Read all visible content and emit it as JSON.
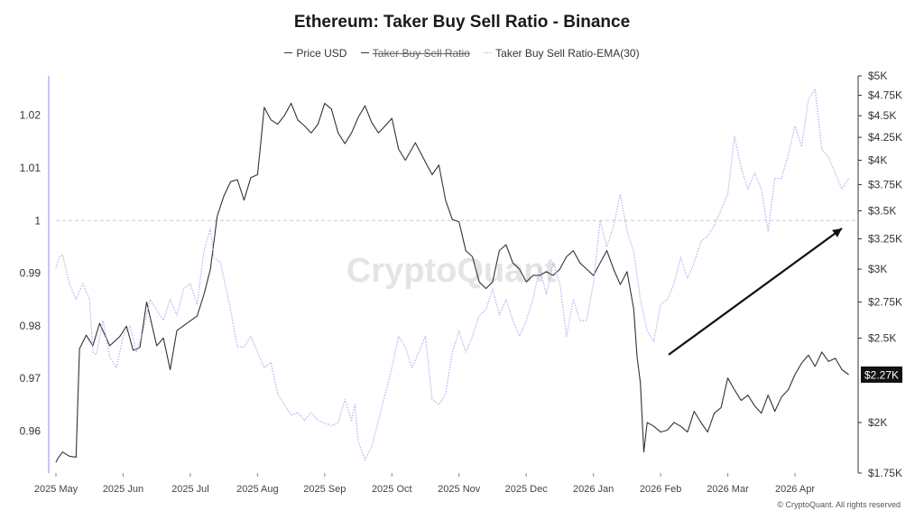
{
  "chart_data": {
    "type": "line",
    "title": "Ethereum: Taker Buy Sell Ratio - Binance",
    "watermark": "CryptoQuant",
    "copyright": "© CryptoQuant. All rights reserved",
    "legend_position": "top-center",
    "legend": [
      {
        "name": "Price USD",
        "visible": true,
        "color": "#333333"
      },
      {
        "name": "Taker Buy Sell Ratio",
        "visible": false,
        "color": "#333333"
      },
      {
        "name": "Taker Buy Sell Ratio-EMA(30)",
        "visible": true,
        "color": "#b7b0f0"
      }
    ],
    "x_ticks": [
      "2025 May",
      "2025 Jun",
      "2025 Jul",
      "2025 Aug",
      "2025 Sep",
      "2025 Oct",
      "2025 Nov",
      "2025 Dec",
      "2026 Jan",
      "2026 Feb",
      "2026 Mar",
      "2026 Apr"
    ],
    "x_range": [
      0,
      11.9
    ],
    "y_left": {
      "ticks": [
        "0.96",
        "0.97",
        "0.98",
        "0.99",
        "1",
        "1.01",
        "1.02"
      ],
      "tick_values": [
        0.96,
        0.97,
        0.98,
        0.99,
        1.0,
        1.01,
        1.02
      ],
      "range": [
        0.952,
        1.0275
      ],
      "reference_line": 1.0
    },
    "y_right": {
      "ticks": [
        "$1.75K",
        "$2K",
        "$2.5K",
        "$2.75K",
        "$3K",
        "$3.25K",
        "$3.5K",
        "$3.75K",
        "$4K",
        "$4.25K",
        "$4.5K",
        "$4.75K",
        "$5K"
      ],
      "tick_values": [
        1750,
        2000,
        2500,
        2750,
        3000,
        3250,
        3500,
        3750,
        4000,
        4250,
        4500,
        4750,
        5000
      ],
      "scale": "log",
      "range": [
        1750,
        5000
      ]
    },
    "current_price_label": "$2.27K",
    "current_price": 2270,
    "annotation": {
      "type": "arrow",
      "from": {
        "x": 9.12,
        "y": 0.9745
      },
      "to": {
        "x": 11.7,
        "y": 0.9985
      }
    },
    "series": [
      {
        "name": "Price USD",
        "axis": "right",
        "color": "#333333",
        "points": [
          [
            0,
            1800
          ],
          [
            0.03,
            1820
          ],
          [
            0.1,
            1850
          ],
          [
            0.2,
            1830
          ],
          [
            0.3,
            1825
          ],
          [
            0.35,
            2430
          ],
          [
            0.45,
            2520
          ],
          [
            0.55,
            2450
          ],
          [
            0.65,
            2600
          ],
          [
            0.8,
            2450
          ],
          [
            0.95,
            2510
          ],
          [
            1.05,
            2580
          ],
          [
            1.15,
            2420
          ],
          [
            1.25,
            2440
          ],
          [
            1.35,
            2750
          ],
          [
            1.5,
            2450
          ],
          [
            1.6,
            2500
          ],
          [
            1.7,
            2300
          ],
          [
            1.8,
            2550
          ],
          [
            1.95,
            2600
          ],
          [
            2.1,
            2650
          ],
          [
            2.2,
            2800
          ],
          [
            2.3,
            3000
          ],
          [
            2.4,
            3450
          ],
          [
            2.5,
            3640
          ],
          [
            2.6,
            3780
          ],
          [
            2.7,
            3800
          ],
          [
            2.8,
            3600
          ],
          [
            2.9,
            3820
          ],
          [
            3.0,
            3850
          ],
          [
            3.05,
            4200
          ],
          [
            3.1,
            4600
          ],
          [
            3.2,
            4450
          ],
          [
            3.3,
            4400
          ],
          [
            3.4,
            4500
          ],
          [
            3.5,
            4650
          ],
          [
            3.6,
            4450
          ],
          [
            3.7,
            4380
          ],
          [
            3.8,
            4300
          ],
          [
            3.9,
            4400
          ],
          [
            4.0,
            4650
          ],
          [
            4.1,
            4580
          ],
          [
            4.2,
            4300
          ],
          [
            4.3,
            4180
          ],
          [
            4.4,
            4300
          ],
          [
            4.5,
            4480
          ],
          [
            4.6,
            4620
          ],
          [
            4.7,
            4420
          ],
          [
            4.8,
            4300
          ],
          [
            4.9,
            4380
          ],
          [
            5.0,
            4470
          ],
          [
            5.1,
            4120
          ],
          [
            5.2,
            4000
          ],
          [
            5.35,
            4190
          ],
          [
            5.5,
            3980
          ],
          [
            5.6,
            3850
          ],
          [
            5.7,
            3950
          ],
          [
            5.8,
            3600
          ],
          [
            5.9,
            3420
          ],
          [
            6.0,
            3400
          ],
          [
            6.1,
            3150
          ],
          [
            6.2,
            3100
          ],
          [
            6.3,
            2900
          ],
          [
            6.4,
            2850
          ],
          [
            6.5,
            2900
          ],
          [
            6.6,
            3150
          ],
          [
            6.7,
            3200
          ],
          [
            6.8,
            3050
          ],
          [
            6.9,
            3000
          ],
          [
            7.0,
            2900
          ],
          [
            7.1,
            2950
          ],
          [
            7.2,
            2950
          ],
          [
            7.3,
            2980
          ],
          [
            7.4,
            2950
          ],
          [
            7.5,
            3000
          ],
          [
            7.6,
            3100
          ],
          [
            7.7,
            3150
          ],
          [
            7.8,
            3050
          ],
          [
            7.9,
            3000
          ],
          [
            8.0,
            2950
          ],
          [
            8.1,
            3050
          ],
          [
            8.2,
            3150
          ],
          [
            8.3,
            3000
          ],
          [
            8.4,
            2880
          ],
          [
            8.5,
            2980
          ],
          [
            8.6,
            2700
          ],
          [
            8.65,
            2380
          ],
          [
            8.7,
            2220
          ],
          [
            8.75,
            1850
          ],
          [
            8.8,
            2000
          ],
          [
            8.9,
            1980
          ],
          [
            9.0,
            1950
          ],
          [
            9.1,
            1960
          ],
          [
            9.2,
            2000
          ],
          [
            9.3,
            1980
          ],
          [
            9.4,
            1950
          ],
          [
            9.5,
            2060
          ],
          [
            9.6,
            2000
          ],
          [
            9.7,
            1950
          ],
          [
            9.8,
            2050
          ],
          [
            9.9,
            2080
          ],
          [
            10.0,
            2250
          ],
          [
            10.1,
            2180
          ],
          [
            10.2,
            2120
          ],
          [
            10.3,
            2150
          ],
          [
            10.4,
            2090
          ],
          [
            10.5,
            2050
          ],
          [
            10.6,
            2150
          ],
          [
            10.7,
            2060
          ],
          [
            10.8,
            2140
          ],
          [
            10.9,
            2180
          ],
          [
            11.0,
            2270
          ],
          [
            11.1,
            2340
          ],
          [
            11.2,
            2390
          ],
          [
            11.3,
            2320
          ],
          [
            11.4,
            2410
          ],
          [
            11.5,
            2350
          ],
          [
            11.6,
            2370
          ],
          [
            11.7,
            2300
          ],
          [
            11.8,
            2270
          ]
        ]
      },
      {
        "name": "Taker Buy Sell Ratio-EMA(30)",
        "axis": "left",
        "color": "#b7b0f0",
        "dashed": true,
        "points": [
          [
            0,
            0.991
          ],
          [
            0.05,
            0.993
          ],
          [
            0.1,
            0.9935
          ],
          [
            0.2,
            0.988
          ],
          [
            0.3,
            0.985
          ],
          [
            0.4,
            0.988
          ],
          [
            0.5,
            0.985
          ],
          [
            0.55,
            0.975
          ],
          [
            0.6,
            0.9745
          ],
          [
            0.7,
            0.981
          ],
          [
            0.8,
            0.974
          ],
          [
            0.9,
            0.972
          ],
          [
            1.0,
            0.978
          ],
          [
            1.1,
            0.98
          ],
          [
            1.2,
            0.975
          ],
          [
            1.3,
            0.979
          ],
          [
            1.4,
            0.985
          ],
          [
            1.5,
            0.983
          ],
          [
            1.6,
            0.981
          ],
          [
            1.7,
            0.985
          ],
          [
            1.8,
            0.982
          ],
          [
            1.9,
            0.987
          ],
          [
            2.0,
            0.988
          ],
          [
            2.1,
            0.984
          ],
          [
            2.2,
            0.994
          ],
          [
            2.3,
            0.9985
          ],
          [
            2.35,
            0.993
          ],
          [
            2.45,
            0.992
          ],
          [
            2.6,
            0.983
          ],
          [
            2.7,
            0.976
          ],
          [
            2.8,
            0.976
          ],
          [
            2.9,
            0.978
          ],
          [
            3.0,
            0.975
          ],
          [
            3.1,
            0.972
          ],
          [
            3.2,
            0.973
          ],
          [
            3.3,
            0.967
          ],
          [
            3.4,
            0.965
          ],
          [
            3.5,
            0.963
          ],
          [
            3.6,
            0.9635
          ],
          [
            3.7,
            0.962
          ],
          [
            3.8,
            0.9635
          ],
          [
            3.9,
            0.962
          ],
          [
            4.0,
            0.9615
          ],
          [
            4.1,
            0.961
          ],
          [
            4.2,
            0.9615
          ],
          [
            4.3,
            0.966
          ],
          [
            4.4,
            0.962
          ],
          [
            4.45,
            0.965
          ],
          [
            4.5,
            0.958
          ],
          [
            4.6,
            0.9545
          ],
          [
            4.7,
            0.957
          ],
          [
            4.8,
            0.962
          ],
          [
            4.9,
            0.967
          ],
          [
            5.0,
            0.972
          ],
          [
            5.1,
            0.978
          ],
          [
            5.2,
            0.976
          ],
          [
            5.3,
            0.972
          ],
          [
            5.4,
            0.975
          ],
          [
            5.5,
            0.978
          ],
          [
            5.6,
            0.966
          ],
          [
            5.7,
            0.965
          ],
          [
            5.8,
            0.967
          ],
          [
            5.9,
            0.975
          ],
          [
            6.0,
            0.979
          ],
          [
            6.1,
            0.975
          ],
          [
            6.2,
            0.978
          ],
          [
            6.3,
            0.982
          ],
          [
            6.4,
            0.983
          ],
          [
            6.5,
            0.987
          ],
          [
            6.6,
            0.982
          ],
          [
            6.7,
            0.985
          ],
          [
            6.8,
            0.981
          ],
          [
            6.9,
            0.978
          ],
          [
            7.0,
            0.981
          ],
          [
            7.1,
            0.985
          ],
          [
            7.2,
            0.991
          ],
          [
            7.3,
            0.986
          ],
          [
            7.4,
            0.992
          ],
          [
            7.5,
            0.988
          ],
          [
            7.6,
            0.978
          ],
          [
            7.7,
            0.985
          ],
          [
            7.8,
            0.981
          ],
          [
            7.9,
            0.981
          ],
          [
            8.0,
            0.988
          ],
          [
            8.1,
            1.0
          ],
          [
            8.2,
            0.995
          ],
          [
            8.3,
            0.999
          ],
          [
            8.4,
            1.005
          ],
          [
            8.5,
            0.998
          ],
          [
            8.6,
            0.994
          ],
          [
            8.7,
            0.985
          ],
          [
            8.8,
            0.979
          ],
          [
            8.9,
            0.977
          ],
          [
            9.0,
            0.984
          ],
          [
            9.1,
            0.985
          ],
          [
            9.2,
            0.988
          ],
          [
            9.3,
            0.993
          ],
          [
            9.4,
            0.989
          ],
          [
            9.5,
            0.992
          ],
          [
            9.6,
            0.996
          ],
          [
            9.7,
            0.997
          ],
          [
            9.8,
            0.999
          ],
          [
            9.9,
            1.002
          ],
          [
            10.0,
            1.005
          ],
          [
            10.1,
            1.016
          ],
          [
            10.2,
            1.01
          ],
          [
            10.3,
            1.006
          ],
          [
            10.4,
            1.009
          ],
          [
            10.5,
            1.006
          ],
          [
            10.6,
            0.998
          ],
          [
            10.7,
            1.008
          ],
          [
            10.8,
            1.008
          ],
          [
            10.9,
            1.0125
          ],
          [
            11.0,
            1.018
          ],
          [
            11.1,
            1.014
          ],
          [
            11.2,
            1.023
          ],
          [
            11.3,
            1.025
          ],
          [
            11.4,
            1.0135
          ],
          [
            11.5,
            1.012
          ],
          [
            11.6,
            1.009
          ],
          [
            11.7,
            1.006
          ],
          [
            11.8,
            1.008
          ]
        ]
      }
    ]
  }
}
